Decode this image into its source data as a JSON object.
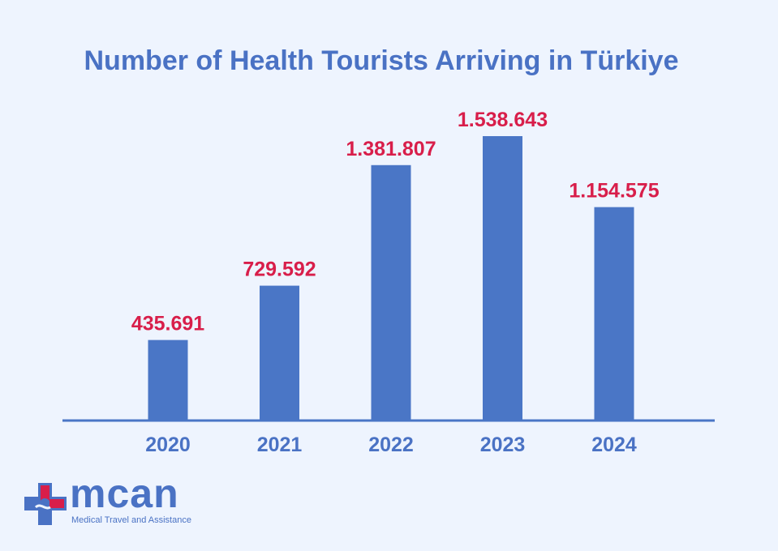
{
  "chart_data": {
    "type": "bar",
    "title": "Number of Health Tourists Arriving in Türkiye",
    "categories": [
      "2020",
      "2021",
      "2022",
      "2023",
      "2024"
    ],
    "values": [
      435691,
      729592,
      1381807,
      1538643,
      1154575
    ],
    "value_labels": [
      "435.691",
      "729.592",
      "1.381.807",
      "1.538.643",
      "1.154.575"
    ],
    "xlabel": "",
    "ylabel": "",
    "ylim": [
      0,
      1800000
    ],
    "grid": false,
    "legend": "none",
    "colors": {
      "bar": "#4a76c6",
      "axis": "#4a76c6",
      "value_label": "#d81e4a",
      "title": "#4a72c4",
      "tick_label": "#4a72c4"
    }
  },
  "logo": {
    "wordmark": "mcan",
    "tagline": "Medical Travel and Assistance",
    "icon": "medical-cross-icon",
    "colors": {
      "blue": "#4a72c4",
      "red": "#d81e4a"
    }
  }
}
